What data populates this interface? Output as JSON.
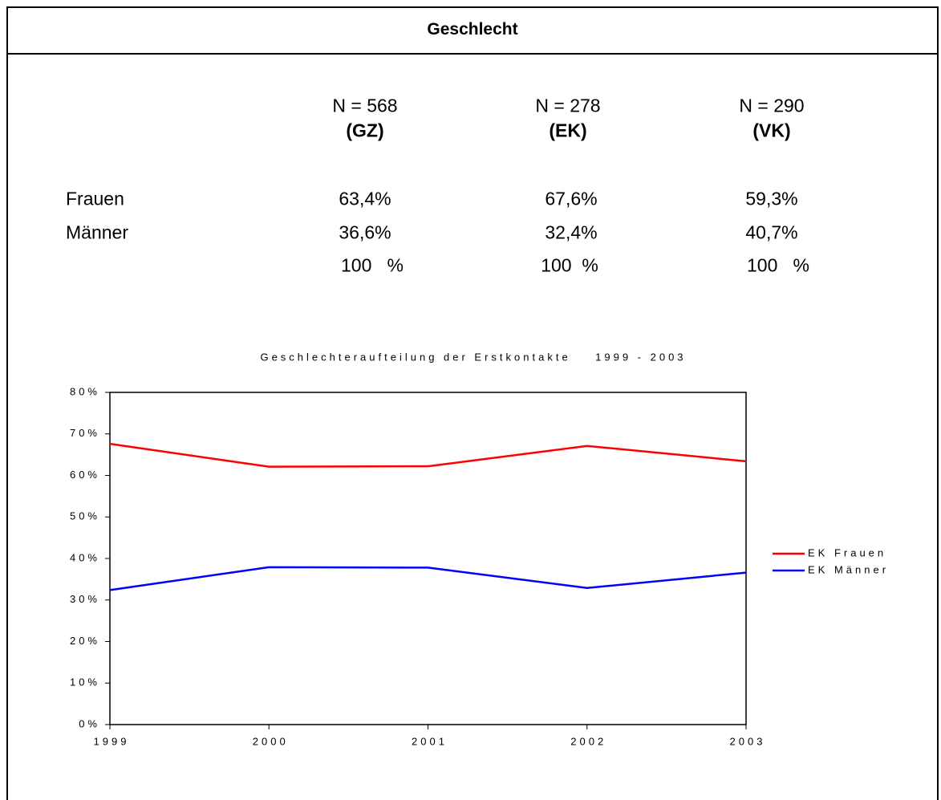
{
  "header": {
    "title": "Geschlecht"
  },
  "table": {
    "columns": [
      {
        "n": "N = 568",
        "group": "(GZ)"
      },
      {
        "n": "N = 278",
        "group": "(EK)"
      },
      {
        "n": "N = 290",
        "group": "(VK)"
      }
    ],
    "rows": [
      [
        "Frauen",
        "63,4%",
        "67,6%",
        "59,3%"
      ],
      [
        "Männer",
        "36,6%",
        "32,4%",
        "40,7%"
      ],
      [
        "",
        "100   %",
        "100  %",
        "100   %"
      ]
    ]
  },
  "chart_data": {
    "type": "line",
    "title": "Geschlechteraufteilung der Erstkontakte    1999 - 2003",
    "categories": [
      "1999",
      "2000",
      "2001",
      "2002",
      "2003"
    ],
    "series": [
      {
        "name": "EK Frauen",
        "color": "#ff0000",
        "values": [
          67.6,
          62.1,
          62.2,
          67.1,
          63.4
        ]
      },
      {
        "name": "EK Männer",
        "color": "#0000ff",
        "values": [
          32.4,
          37.9,
          37.8,
          32.9,
          36.6
        ]
      }
    ],
    "ylim": [
      0,
      80
    ],
    "yticks": [
      {
        "value": 0,
        "label": "0%"
      },
      {
        "value": 10,
        "label": "10%"
      },
      {
        "value": 20,
        "label": "20%"
      },
      {
        "value": 30,
        "label": "30%"
      },
      {
        "value": 40,
        "label": "40%"
      },
      {
        "value": 50,
        "label": "50%"
      },
      {
        "value": 60,
        "label": "60%"
      },
      {
        "value": 70,
        "label": "70%"
      },
      {
        "value": 80,
        "label": "80%"
      }
    ],
    "legend": "right"
  }
}
